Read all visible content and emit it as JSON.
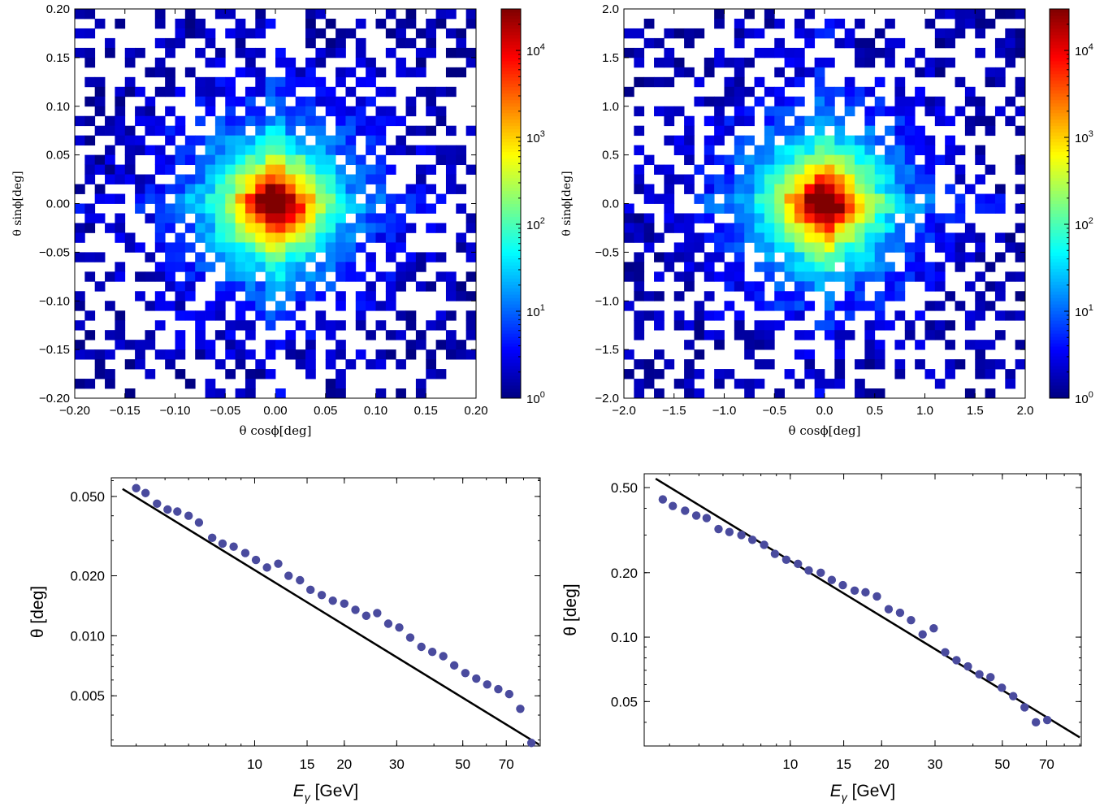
{
  "chart_data": [
    {
      "type": "heatmap",
      "x_label": "θ cosϕ[deg]",
      "y_label": "θ sinϕ[deg]",
      "xlim": [
        -0.2,
        0.2
      ],
      "ylim": [
        -0.2,
        0.2
      ],
      "x_ticks": [
        "−0.20",
        "−0.15",
        "−0.10",
        "−0.05",
        "0.00",
        "0.05",
        "0.10",
        "0.15",
        "0.20"
      ],
      "y_ticks": [
        "−0.20",
        "−0.15",
        "−0.10",
        "−0.05",
        "0.00",
        "0.05",
        "0.10",
        "0.15",
        "0.20"
      ],
      "colorbar": {
        "scale": "log",
        "range": [
          1,
          30000
        ],
        "ticks": [
          "10",
          "10",
          "10",
          "10",
          "10"
        ],
        "tick_exponents": [
          "0",
          "1",
          "2",
          "3",
          "4"
        ],
        "tick_values": [
          1,
          10,
          100,
          1000,
          10000
        ],
        "colormap": "jet"
      },
      "grid": false,
      "bins": 40,
      "peak_count": 30000,
      "seed": 17
    },
    {
      "type": "heatmap",
      "x_label": "θ cosϕ[deg]",
      "y_label": "θ sinϕ[deg]",
      "xlim": [
        -2.0,
        2.0
      ],
      "ylim": [
        -2.0,
        2.0
      ],
      "x_ticks": [
        "−2.0",
        "−1.5",
        "−1.0",
        "−0.5",
        "0.0",
        "0.5",
        "1.0",
        "1.5",
        "2.0"
      ],
      "y_ticks": [
        "−2.0",
        "−1.5",
        "−1.0",
        "−0.5",
        "0.0",
        "0.5",
        "1.0",
        "1.5",
        "2.0"
      ],
      "colorbar": {
        "scale": "log",
        "range": [
          1,
          30000
        ],
        "ticks": [
          "10",
          "10",
          "10",
          "10",
          "10"
        ],
        "tick_exponents": [
          "0",
          "1",
          "2",
          "3",
          "4"
        ],
        "tick_values": [
          1,
          10,
          100,
          1000,
          10000
        ],
        "colormap": "jet"
      },
      "grid": false,
      "bins": 40,
      "peak_count": 30000,
      "seed": 53
    },
    {
      "type": "scatter",
      "x_label": "E",
      "x_label_sub": "γ",
      "x_label_unit": " [GeV]",
      "y_label": "θ [deg]",
      "x_scale": "log",
      "y_scale": "log",
      "xlim": [
        3.3,
        91
      ],
      "ylim": [
        0.0028,
        0.062
      ],
      "x_ticks": [
        10,
        15,
        20,
        30,
        50,
        70
      ],
      "x_tick_labels": [
        "10",
        "15",
        "20",
        "30",
        "50",
        "70"
      ],
      "y_ticks": [
        0.005,
        0.01,
        0.02,
        0.05
      ],
      "y_tick_labels": [
        "0.005",
        "0.010",
        "0.020",
        "0.050"
      ],
      "grid": false,
      "line": {
        "x": [
          3.6,
          90
        ],
        "y": [
          0.0545,
          0.00285
        ]
      },
      "points": {
        "x": [
          4.0,
          4.3,
          4.7,
          5.1,
          5.5,
          6.0,
          6.5,
          7.2,
          7.8,
          8.5,
          9.3,
          10.1,
          11.0,
          12.0,
          13.0,
          14.2,
          15.4,
          16.8,
          18.3,
          20.0,
          21.8,
          23.7,
          25.8,
          28.1,
          30.6,
          33.3,
          36.3,
          39.5,
          43.0,
          46.8,
          51.0,
          55.5,
          60.4,
          65.8,
          71.6,
          78.0,
          85.0
        ],
        "y": [
          0.055,
          0.052,
          0.046,
          0.043,
          0.042,
          0.04,
          0.037,
          0.031,
          0.029,
          0.028,
          0.026,
          0.024,
          0.022,
          0.023,
          0.02,
          0.019,
          0.017,
          0.016,
          0.015,
          0.0145,
          0.0135,
          0.0126,
          0.013,
          0.0115,
          0.011,
          0.0098,
          0.0088,
          0.0083,
          0.0079,
          0.0071,
          0.0065,
          0.0061,
          0.0057,
          0.0054,
          0.0051,
          0.0043,
          0.0029
        ]
      },
      "marker_color": "#4a4b9e"
    },
    {
      "type": "scatter",
      "x_label": "E",
      "x_label_sub": "γ",
      "x_label_unit": " [GeV]",
      "y_label": "θ [deg]",
      "x_scale": "log",
      "y_scale": "log",
      "xlim": [
        3.3,
        91
      ],
      "ylim": [
        0.031,
        0.58
      ],
      "x_ticks": [
        10,
        15,
        20,
        30,
        50,
        70
      ],
      "x_tick_labels": [
        "10",
        "15",
        "20",
        "30",
        "50",
        "70"
      ],
      "y_ticks": [
        0.05,
        0.1,
        0.2,
        0.5
      ],
      "y_tick_labels": [
        "0.05",
        "0.10",
        "0.20",
        "0.50"
      ],
      "grid": false,
      "line": {
        "x": [
          3.6,
          90
        ],
        "y": [
          0.55,
          0.034
        ]
      },
      "points": {
        "x": [
          3.8,
          4.1,
          4.5,
          4.9,
          5.3,
          5.8,
          6.3,
          6.9,
          7.5,
          8.2,
          8.9,
          9.7,
          10.6,
          11.5,
          12.6,
          13.7,
          14.9,
          16.3,
          17.7,
          19.3,
          21.1,
          23.0,
          25.0,
          27.3,
          29.7,
          32.4,
          35.3,
          38.5,
          42.0,
          45.7,
          49.8,
          54.3,
          59.2,
          64.5,
          70.3
        ],
        "y": [
          0.44,
          0.41,
          0.39,
          0.37,
          0.36,
          0.32,
          0.31,
          0.3,
          0.285,
          0.27,
          0.245,
          0.23,
          0.22,
          0.205,
          0.2,
          0.185,
          0.175,
          0.165,
          0.162,
          0.155,
          0.135,
          0.13,
          0.12,
          0.103,
          0.11,
          0.085,
          0.078,
          0.073,
          0.067,
          0.065,
          0.058,
          0.053,
          0.047,
          0.04,
          0.041
        ]
      },
      "marker_color": "#4a4b9e"
    }
  ]
}
